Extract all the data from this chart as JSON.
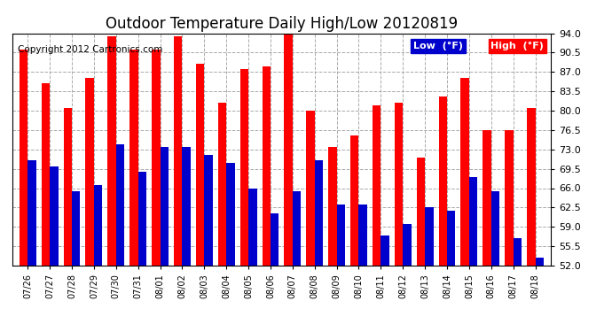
{
  "title": "Outdoor Temperature Daily High/Low 20120819",
  "copyright": "Copyright 2012 Cartronics.com",
  "legend_low": "Low  (°F)",
  "legend_high": "High  (°F)",
  "categories": [
    "07/26",
    "07/27",
    "07/28",
    "07/29",
    "07/30",
    "07/31",
    "08/01",
    "08/02",
    "08/03",
    "08/04",
    "08/05",
    "08/06",
    "08/07",
    "08/08",
    "08/09",
    "08/10",
    "08/11",
    "08/12",
    "08/13",
    "08/14",
    "08/15",
    "08/16",
    "08/17",
    "08/18"
  ],
  "high": [
    91.0,
    85.0,
    80.5,
    86.0,
    93.5,
    91.0,
    91.0,
    93.5,
    88.5,
    81.5,
    87.5,
    88.0,
    94.5,
    80.0,
    73.5,
    75.5,
    81.0,
    81.5,
    71.5,
    82.5,
    86.0,
    76.5,
    76.5,
    80.5
  ],
  "low": [
    71.0,
    70.0,
    65.5,
    66.5,
    74.0,
    69.0,
    73.5,
    73.5,
    72.0,
    70.5,
    66.0,
    61.5,
    65.5,
    71.0,
    63.0,
    63.0,
    57.5,
    59.5,
    62.5,
    62.0,
    68.0,
    65.5,
    57.0,
    53.5
  ],
  "high_color": "#ff0000",
  "low_color": "#0000cc",
  "background_color": "#ffffff",
  "grid_color": "#aaaaaa",
  "ylim": [
    52.0,
    94.0
  ],
  "yticks": [
    52.0,
    55.5,
    59.0,
    62.5,
    66.0,
    69.5,
    73.0,
    76.5,
    80.0,
    83.5,
    87.0,
    90.5,
    94.0
  ],
  "title_fontsize": 12,
  "copyright_fontsize": 7.5,
  "bar_width": 0.38
}
